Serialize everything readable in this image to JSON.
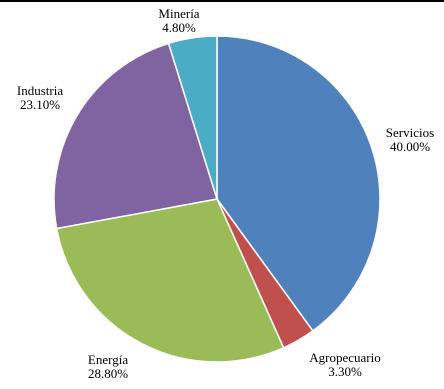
{
  "chart_data": {
    "type": "pie",
    "start": "12 o'clock",
    "direction": "clockwise",
    "slices": [
      {
        "label": "Servicios",
        "value": 40.0,
        "value_label": "40.00%",
        "color": "#4f81bd"
      },
      {
        "label": "Agropecuario",
        "value": 3.3,
        "value_label": "3.30%",
        "color": "#c0504d"
      },
      {
        "label": "Energía",
        "value": 28.8,
        "value_label": "28.80%",
        "color": "#9bbb59"
      },
      {
        "label": "Industria",
        "value": 23.1,
        "value_label": "23.10%",
        "color": "#8064a2"
      },
      {
        "label": "Minería",
        "value": 4.8,
        "value_label": "4.80%",
        "color": "#4bacc6"
      }
    ]
  }
}
